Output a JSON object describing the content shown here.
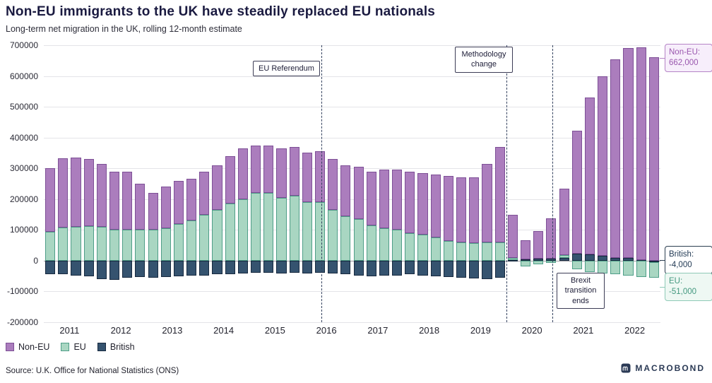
{
  "header": {
    "title": "Non-EU immigrants to the UK have steadily replaced EU nationals",
    "subtitle": "Long-term net migration in the UK, rolling 12-month estimate"
  },
  "source": "Source: U.K. Office for National Statistics (ONS)",
  "brand": "MACROBOND",
  "colors": {
    "non_eu_fill": "#ab7dbd",
    "non_eu_border": "#7d4f96",
    "eu_fill": "#a9d6c2",
    "eu_border": "#4f9e88",
    "british_fill": "#35536f",
    "british_border": "#17293f",
    "grid": "#e4e4e8",
    "zero_line": "#9a9aa1",
    "dashed_line": "#33415e",
    "title_text": "#1a1a40"
  },
  "legend": [
    {
      "label": "Non-EU",
      "fill": "#ab7dbd",
      "border": "#7d4f96"
    },
    {
      "label": "EU",
      "fill": "#a9d6c2",
      "border": "#4f9e88"
    },
    {
      "label": "British",
      "fill": "#35536f",
      "border": "#17293f"
    }
  ],
  "chart_data": {
    "type": "bar",
    "stacked": true,
    "title": "Non-EU immigrants to the UK have steadily replaced EU nationals",
    "subtitle": "Long-term net migration in the UK, rolling 12-month estimate",
    "ylim": [
      -200000,
      700000
    ],
    "ytick_step": 100000,
    "grid": true,
    "legend_position": "bottom-left",
    "xtick_labels": [
      "2011",
      "2012",
      "2013",
      "2014",
      "2015",
      "2016",
      "2017",
      "2018",
      "2019",
      "2020",
      "2021",
      "2022"
    ],
    "x": [
      "2011 Q1",
      "2011 Q2",
      "2011 Q3",
      "2011 Q4",
      "2012 Q1",
      "2012 Q2",
      "2012 Q3",
      "2012 Q4",
      "2013 Q1",
      "2013 Q2",
      "2013 Q3",
      "2013 Q4",
      "2014 Q1",
      "2014 Q2",
      "2014 Q3",
      "2014 Q4",
      "2015 Q1",
      "2015 Q2",
      "2015 Q3",
      "2015 Q4",
      "2016 Q1",
      "2016 Q2",
      "2016 Q3",
      "2016 Q4",
      "2017 Q1",
      "2017 Q2",
      "2017 Q3",
      "2017 Q4",
      "2018 Q1",
      "2018 Q2",
      "2018 Q3",
      "2018 Q4",
      "2019 Q1",
      "2019 Q2",
      "2019 Q3",
      "2019 Q4",
      "2020 Q1",
      "2020 Q2",
      "2020 Q3",
      "2020 Q4",
      "2021 Q1",
      "2021 Q2",
      "2021 Q3",
      "2021 Q4",
      "2022 Q1",
      "2022 Q2",
      "2022 Q3",
      "2022 Q4"
    ],
    "series": [
      {
        "name": "Non-EU",
        "values": [
          205000,
          225000,
          225000,
          218000,
          205000,
          190000,
          190000,
          150000,
          120000,
          135000,
          140000,
          135000,
          140000,
          145000,
          155000,
          165000,
          155000,
          155000,
          160000,
          160000,
          160000,
          165000,
          165000,
          165000,
          170000,
          175000,
          190000,
          195000,
          200000,
          200000,
          205000,
          210000,
          210000,
          212000,
          255000,
          310000,
          140000,
          62000,
          90000,
          130000,
          215000,
          400000,
          510000,
          585000,
          645000,
          682000,
          690000,
          662000
        ]
      },
      {
        "name": "EU",
        "values": [
          95000,
          108000,
          110000,
          112000,
          110000,
          100000,
          100000,
          100000,
          100000,
          105000,
          120000,
          130000,
          150000,
          165000,
          185000,
          200000,
          220000,
          220000,
          205000,
          210000,
          190000,
          190000,
          165000,
          145000,
          135000,
          115000,
          105000,
          100000,
          90000,
          85000,
          75000,
          65000,
          60000,
          58000,
          60000,
          60000,
          5000,
          -18000,
          -12000,
          -8000,
          10000,
          -28000,
          -38000,
          -42000,
          -45000,
          -48000,
          -52000,
          -51000
        ]
      },
      {
        "name": "British",
        "values": [
          -45000,
          -45000,
          -48000,
          -50000,
          -60000,
          -62000,
          -55000,
          -52000,
          -55000,
          -52000,
          -50000,
          -48000,
          -48000,
          -45000,
          -45000,
          -42000,
          -40000,
          -40000,
          -42000,
          -40000,
          -42000,
          -40000,
          -42000,
          -45000,
          -48000,
          -50000,
          -48000,
          -48000,
          -45000,
          -48000,
          -50000,
          -52000,
          -55000,
          -58000,
          -60000,
          -55000,
          3000,
          5000,
          6000,
          7000,
          8000,
          22000,
          20000,
          15000,
          10000,
          8000,
          3000,
          -4000
        ]
      }
    ],
    "annotations": [
      {
        "id": "eu-referendum",
        "label": "EU Referendum",
        "x_index": 21.6
      },
      {
        "id": "methodology-change",
        "label": "Methodology change",
        "x_index": 36
      },
      {
        "id": "brexit-transition",
        "label": "Brexit transition ends",
        "x_index": 39.6
      }
    ],
    "callouts": {
      "non_eu": {
        "label": "Non-EU:",
        "value": "662,000"
      },
      "british": {
        "label": "British:",
        "value": "-4,000"
      },
      "eu": {
        "label": "EU:",
        "value": "-51,000"
      }
    }
  }
}
